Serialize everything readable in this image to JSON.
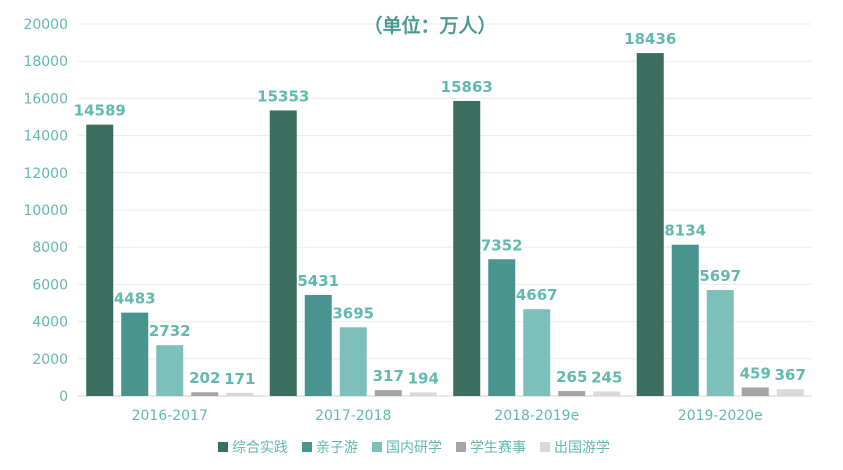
{
  "chart_data": {
    "type": "bar",
    "unit_label": "（单位：万人）",
    "categories": [
      "2016-2017",
      "2017-2018",
      "2018-2019e",
      "2019-2020e"
    ],
    "ylim": [
      0,
      20000
    ],
    "yticks": [
      0,
      2000,
      4000,
      6000,
      8000,
      10000,
      12000,
      14000,
      16000,
      18000,
      20000
    ],
    "grid": true,
    "legend_position": "bottom",
    "series": [
      {
        "name": "综合实践",
        "color": "#3c6e5f",
        "values": [
          14589,
          15353,
          15863,
          18436
        ]
      },
      {
        "name": "亲子游",
        "color": "#4a948f",
        "values": [
          4483,
          5431,
          7352,
          8134
        ]
      },
      {
        "name": "国内研学",
        "color": "#7dbfbb",
        "values": [
          2732,
          3695,
          4667,
          5697
        ]
      },
      {
        "name": "学生赛事",
        "color": "#a5a5a5",
        "values": [
          202,
          317,
          265,
          459
        ]
      },
      {
        "name": "出国游学",
        "color": "#d9d9d9",
        "values": [
          171,
          194,
          245,
          367
        ]
      }
    ]
  }
}
